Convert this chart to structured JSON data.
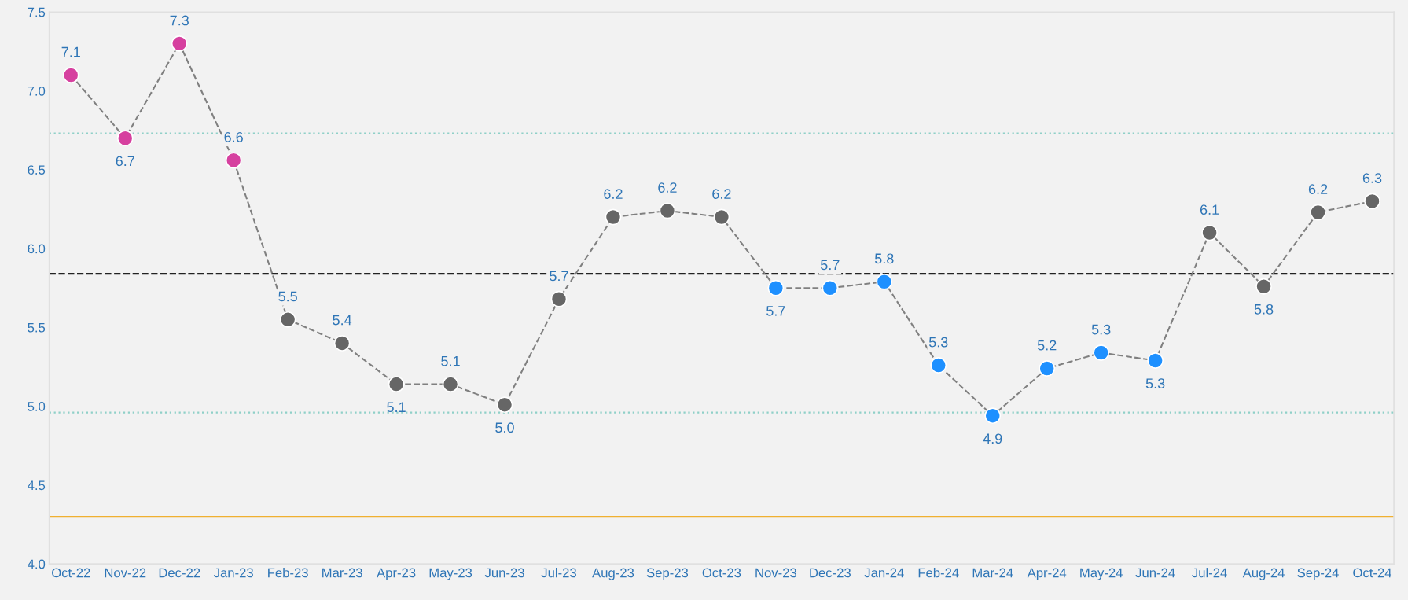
{
  "chart_data": {
    "type": "line",
    "categories": [
      "Oct-22",
      "Nov-22",
      "Dec-22",
      "Jan-23",
      "Feb-23",
      "Mar-23",
      "Apr-23",
      "May-23",
      "Jun-23",
      "Jul-23",
      "Aug-23",
      "Sep-23",
      "Oct-23",
      "Nov-23",
      "Dec-23",
      "Jan-24",
      "Feb-24",
      "Mar-24",
      "Apr-24",
      "May-24",
      "Jun-24",
      "Jul-24",
      "Aug-24",
      "Sep-24",
      "Oct-24"
    ],
    "series": [
      {
        "color": "#808080",
        "values": [
          7.1,
          6.7,
          7.3,
          6.56,
          5.55,
          5.4,
          5.14,
          5.14,
          5.01,
          5.68,
          6.2,
          6.24,
          6.2,
          5.75,
          5.75,
          5.79,
          5.26,
          4.94,
          5.24,
          5.34,
          5.29,
          6.1,
          5.76,
          6.23,
          6.3
        ],
        "colors": [
          "#d6409f",
          "#d6409f",
          "#d6409f",
          "#d6409f",
          "#666666",
          "#666666",
          "#666666",
          "#666666",
          "#666666",
          "#666666",
          "#666666",
          "#666666",
          "#666666",
          "#1e90ff",
          "#1e90ff",
          "#1e90ff",
          "#1e90ff",
          "#1e90ff",
          "#1e90ff",
          "#1e90ff",
          "#1e90ff",
          "#666666",
          "#666666",
          "#666666",
          "#666666"
        ],
        "value_labels": [
          "7.1",
          "6.7",
          "7.3",
          "6.6",
          "5.5",
          "5.4",
          "5.1",
          "5.1",
          "5.0",
          "5.7",
          "6.2",
          "6.2",
          "6.2",
          "5.7",
          "5.7",
          "5.8",
          "5.3",
          "4.9",
          "5.2",
          "5.3",
          "5.3",
          "6.1",
          "5.8",
          "6.2",
          "6.3"
        ]
      }
    ],
    "marker": "circle",
    "line_style": "dashed",
    "grid": false,
    "legend": false,
    "ylim": [
      4.0,
      7.5
    ],
    "yticks": [
      {
        "value": 4.0,
        "label": "4.0"
      },
      {
        "value": 4.5,
        "label": "4.5"
      },
      {
        "value": 5.0,
        "label": "5.0"
      },
      {
        "value": 5.5,
        "label": "5.5"
      },
      {
        "value": 6.0,
        "label": "6.0"
      },
      {
        "value": 6.5,
        "label": "6.5"
      },
      {
        "value": 7.0,
        "label": "7.0"
      },
      {
        "value": 7.5,
        "label": "7.5"
      }
    ],
    "ref_lines": [
      {
        "axis": "y",
        "value": 5.84,
        "color": "#222222",
        "line_style": "dashed"
      },
      {
        "axis": "y",
        "value": 6.73,
        "color": "#8fd0c8",
        "line_style": "dotted"
      },
      {
        "axis": "y",
        "value": 4.96,
        "color": "#8fd0c8",
        "line_style": "dotted"
      },
      {
        "axis": "y",
        "value": 4.3,
        "color": "#f0b030",
        "line_style": "solid"
      }
    ]
  }
}
